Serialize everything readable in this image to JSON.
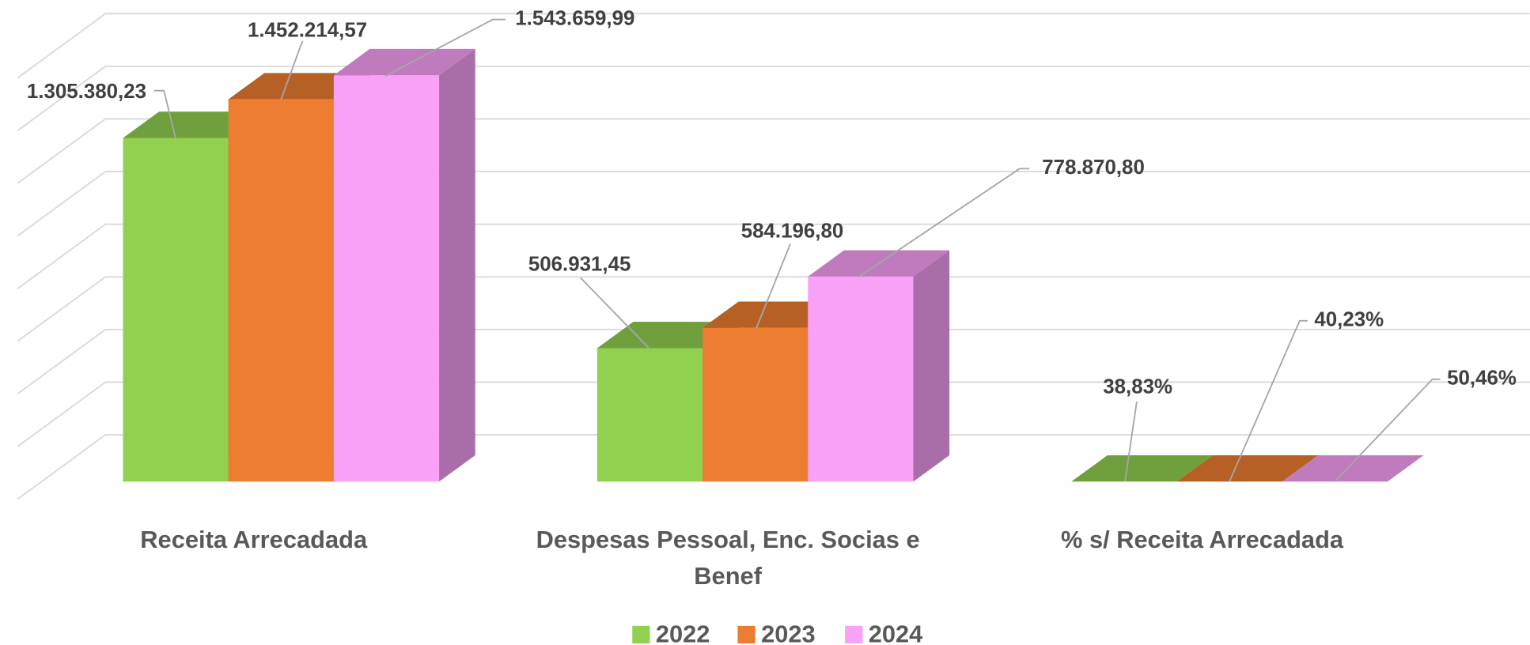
{
  "chart_data": {
    "type": "bar3d",
    "categories": [
      "Receita Arrecadada",
      "Despesas Pessoal, Enc. Socias e Benef",
      "% s/ Receita Arrecadada"
    ],
    "series": [
      {
        "name": "2022",
        "color": "#92d050",
        "values": [
          1305380.23,
          506931.45,
          38.83
        ],
        "value_labels": [
          "1.305.380,23",
          "506.931,45",
          "38,83%"
        ]
      },
      {
        "name": "2023",
        "color": "#ed7d31",
        "values": [
          1452214.57,
          584196.8,
          40.23
        ],
        "value_labels": [
          "1.452.214,57",
          "584.196,80",
          "40,23%"
        ]
      },
      {
        "name": "2024",
        "color": "#f9a0f7",
        "values": [
          1543659.99,
          778870.8,
          50.46
        ],
        "value_labels": [
          "1.543.659,99",
          "778.870,80",
          "50,46%"
        ]
      }
    ],
    "ylim": [
      0,
      1600000
    ],
    "yticks": [
      0,
      200000,
      400000,
      600000,
      800000,
      1000000,
      1200000,
      1400000,
      1600000
    ],
    "grid": true,
    "legend": "bottom"
  }
}
